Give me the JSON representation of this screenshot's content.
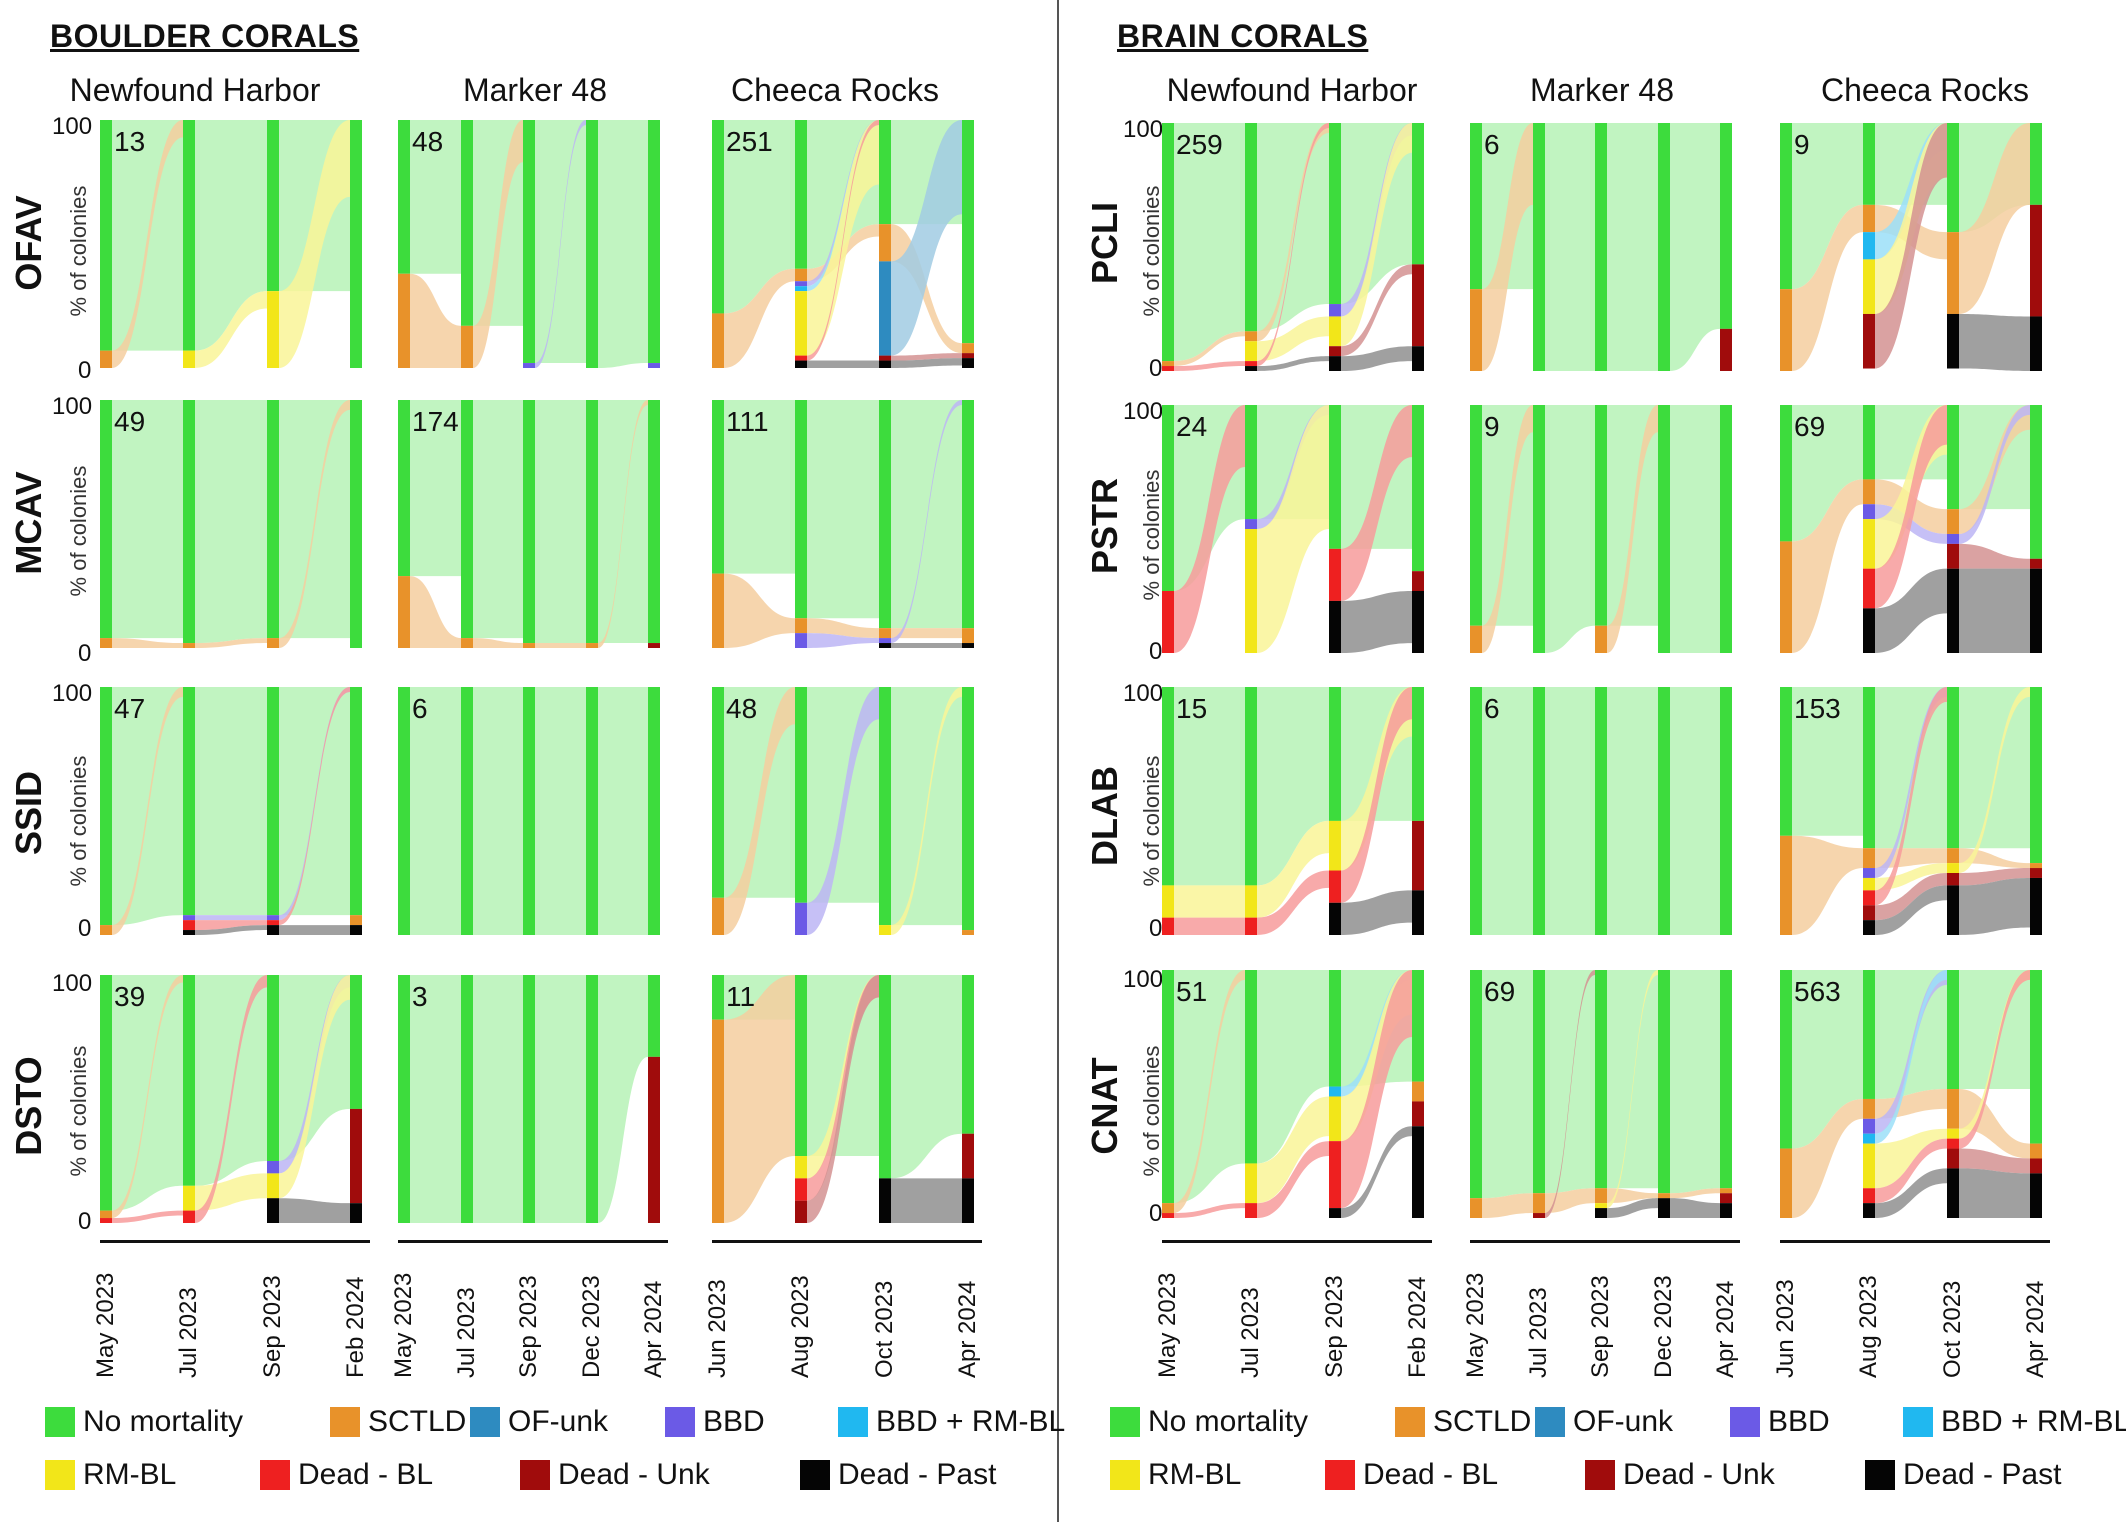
{
  "sections": [
    {
      "title": "BOULDER CORALS",
      "sites": [
        "Newfound Harbor",
        "Marker 48",
        "Cheeca Rocks"
      ],
      "species": [
        "OFAV",
        "MCAV",
        "SSID",
        "DSTO"
      ],
      "counts": [
        [
          "13",
          "48",
          "251"
        ],
        [
          "49",
          "174",
          "111"
        ],
        [
          "47",
          "6",
          "48"
        ],
        [
          "39",
          "3",
          "11"
        ]
      ],
      "dates": [
        [
          "May 2023",
          "Jul 2023",
          "Sep 2023",
          "Feb 2024"
        ],
        [
          "May 2023",
          "Jul 2023",
          "Sep 2023",
          "Dec 2023",
          "Apr 2024"
        ],
        [
          "Jun 2023",
          "Aug 2023",
          "Oct 2023",
          "Apr 2024"
        ]
      ]
    },
    {
      "title": "BRAIN CORALS",
      "sites": [
        "Newfound Harbor",
        "Marker 48",
        "Cheeca Rocks"
      ],
      "species": [
        "PCLI",
        "PSTR",
        "DLAB",
        "CNAT"
      ],
      "counts": [
        [
          "259",
          "6",
          "9"
        ],
        [
          "24",
          "9",
          "69"
        ],
        [
          "15",
          "6",
          "153"
        ],
        [
          "51",
          "69",
          "563"
        ]
      ],
      "dates": [
        [
          "May 2023",
          "Jul 2023",
          "Sep 2023",
          "Feb 2024"
        ],
        [
          "May 2023",
          "Jul 2023",
          "Sep 2023",
          "Dec 2023",
          "Apr 2024"
        ],
        [
          "Jun 2023",
          "Aug 2023",
          "Oct 2023",
          "Apr 2024"
        ]
      ]
    }
  ],
  "y_axis": {
    "title": "% of colonies",
    "tick_top": "100",
    "tick_bottom": "0"
  },
  "legend": [
    {
      "label": "No mortality",
      "color": "#3ddc3d"
    },
    {
      "label": "SCTLD",
      "color": "#e8922a"
    },
    {
      "label": "OF-unk",
      "color": "#2e8bc0"
    },
    {
      "label": "BBD",
      "color": "#6b5ae6"
    },
    {
      "label": "BBD + RM-BL",
      "color": "#20b8f0"
    },
    {
      "label": "RM-BL",
      "color": "#f2e619"
    },
    {
      "label": "Dead - BL",
      "color": "#ee2020"
    },
    {
      "label": "Dead - Unk",
      "color": "#a00c0c"
    },
    {
      "label": "Dead - Past",
      "color": "#050505"
    }
  ],
  "chart_data": {
    "type": "sankey",
    "description_units": "percent of colonies per category at each survey time",
    "ylim": [
      0,
      100
    ],
    "categories": [
      "No mortality",
      "SCTLD",
      "OF-unk",
      "BBD",
      "BBD + RM-BL",
      "RM-BL",
      "Dead - BL",
      "Dead - Unk",
      "Dead - Past"
    ],
    "panels": [
      {
        "group": "BOULDER CORALS",
        "species": "OFAV",
        "site": "Newfound Harbor",
        "n": 13,
        "stacks": [
          {
            "No mortality": 93,
            "SCTLD": 7
          },
          {
            "No mortality": 93,
            "RM-BL": 7
          },
          {
            "No mortality": 69,
            "RM-BL": 31
          },
          {
            "No mortality": 100
          }
        ]
      },
      {
        "group": "BOULDER CORALS",
        "species": "OFAV",
        "site": "Marker 48",
        "n": 48,
        "stacks": [
          {
            "No mortality": 62,
            "SCTLD": 38
          },
          {
            "No mortality": 83,
            "SCTLD": 17
          },
          {
            "No mortality": 98,
            "BBD": 2
          },
          {
            "No mortality": 100
          },
          {
            "No mortality": 98,
            "BBD": 2
          }
        ]
      },
      {
        "group": "BOULDER CORALS",
        "species": "OFAV",
        "site": "Cheeca Rocks",
        "n": 251,
        "stacks": [
          {
            "No mortality": 78,
            "SCTLD": 22
          },
          {
            "No mortality": 60,
            "BBD": 2,
            "BBD + RM-BL": 2,
            "SCTLD": 5,
            "RM-BL": 26,
            "Dead - BL": 2,
            "Dead - Past": 3
          },
          {
            "No mortality": 42,
            "SCTLD": 15,
            "OF-unk": 38,
            "Dead - Unk": 2,
            "Dead - Past": 3
          },
          {
            "No mortality": 90,
            "SCTLD": 4,
            "Dead - Unk": 2,
            "Dead - Past": 4
          }
        ]
      },
      {
        "group": "BOULDER CORALS",
        "species": "MCAV",
        "site": "Newfound Harbor",
        "n": 49,
        "stacks": [
          {
            "No mortality": 96,
            "SCTLD": 4
          },
          {
            "No mortality": 98,
            "SCTLD": 2
          },
          {
            "No mortality": 96,
            "SCTLD": 4
          },
          {
            "No mortality": 100
          }
        ]
      },
      {
        "group": "BOULDER CORALS",
        "species": "MCAV",
        "site": "Marker 48",
        "n": 174,
        "stacks": [
          {
            "No mortality": 71,
            "SCTLD": 29
          },
          {
            "No mortality": 96,
            "SCTLD": 4
          },
          {
            "No mortality": 98,
            "SCTLD": 2
          },
          {
            "No mortality": 98,
            "SCTLD": 2
          },
          {
            "No mortality": 98,
            "Dead - Unk": 2
          }
        ]
      },
      {
        "group": "BOULDER CORALS",
        "species": "MCAV",
        "site": "Cheeca Rocks",
        "n": 111,
        "stacks": [
          {
            "No mortality": 70,
            "SCTLD": 30
          },
          {
            "No mortality": 88,
            "SCTLD": 6,
            "BBD": 6
          },
          {
            "No mortality": 92,
            "SCTLD": 4,
            "BBD": 2,
            "Dead - Past": 2
          },
          {
            "No mortality": 92,
            "SCTLD": 6,
            "Dead - Past": 2
          }
        ]
      },
      {
        "group": "BOULDER CORALS",
        "species": "SSID",
        "site": "Newfound Harbor",
        "n": 47,
        "stacks": [
          {
            "No mortality": 96,
            "SCTLD": 4
          },
          {
            "No mortality": 92,
            "BBD": 2,
            "Dead - BL": 4,
            "Dead - Past": 2
          },
          {
            "No mortality": 92,
            "BBD": 2,
            "Dead - Past": 4,
            "Dead - BL": 2
          },
          {
            "No mortality": 92,
            "SCTLD": 4,
            "Dead - Past": 4
          }
        ]
      },
      {
        "group": "BOULDER CORALS",
        "species": "SSID",
        "site": "Marker 48",
        "n": 6,
        "stacks": [
          {
            "No mortality": 100
          },
          {
            "No mortality": 100
          },
          {
            "No mortality": 100
          },
          {
            "No mortality": 100
          },
          {
            "No mortality": 100
          }
        ]
      },
      {
        "group": "BOULDER CORALS",
        "species": "SSID",
        "site": "Cheeca Rocks",
        "n": 48,
        "stacks": [
          {
            "No mortality": 85,
            "SCTLD": 15
          },
          {
            "No mortality": 87,
            "BBD": 13
          },
          {
            "No mortality": 96,
            "RM-BL": 4
          },
          {
            "No mortality": 98,
            "SCTLD": 2
          }
        ]
      },
      {
        "group": "BOULDER CORALS",
        "species": "DSTO",
        "site": "Newfound Harbor",
        "n": 39,
        "stacks": [
          {
            "No mortality": 95,
            "SCTLD": 3,
            "Dead - BL": 2
          },
          {
            "No mortality": 85,
            "RM-BL": 10,
            "Dead - BL": 5
          },
          {
            "No mortality": 75,
            "BBD": 5,
            "RM-BL": 10,
            "Dead - Past": 10
          },
          {
            "No mortality": 54,
            "Dead - Unk": 38,
            "Dead - Past": 8
          }
        ]
      },
      {
        "group": "BOULDER CORALS",
        "species": "DSTO",
        "site": "Marker 48",
        "n": 3,
        "stacks": [
          {
            "No mortality": 100
          },
          {
            "No mortality": 100
          },
          {
            "No mortality": 100
          },
          {
            "No mortality": 100
          },
          {
            "No mortality": 33,
            "Dead - Unk": 67
          }
        ]
      },
      {
        "group": "BOULDER CORALS",
        "species": "DSTO",
        "site": "Cheeca Rocks",
        "n": 11,
        "stacks": [
          {
            "No mortality": 18,
            "SCTLD": 82
          },
          {
            "No mortality": 73,
            "RM-BL": 9,
            "Dead - BL": 9,
            "Dead - Unk": 9
          },
          {
            "No mortality": 82,
            "Dead - Past": 18
          },
          {
            "No mortality": 64,
            "Dead - Unk": 18,
            "Dead - Past": 18
          }
        ]
      },
      {
        "group": "BRAIN CORALS",
        "species": "PCLI",
        "site": "Newfound Harbor",
        "n": 259,
        "stacks": [
          {
            "No mortality": 96,
            "SCTLD": 2,
            "Dead - BL": 2
          },
          {
            "No mortality": 84,
            "SCTLD": 4,
            "RM-BL": 8,
            "Dead - BL": 2,
            "Dead - Past": 2
          },
          {
            "No mortality": 73,
            "BBD": 5,
            "RM-BL": 12,
            "Dead - Unk": 4,
            "Dead - Past": 6
          },
          {
            "No mortality": 57,
            "Dead - Unk": 33,
            "Dead - Past": 10
          }
        ]
      },
      {
        "group": "BRAIN CORALS",
        "species": "PCLI",
        "site": "Marker 48",
        "n": 6,
        "stacks": [
          {
            "No mortality": 67,
            "SCTLD": 33
          },
          {
            "No mortality": 100
          },
          {
            "No mortality": 100
          },
          {
            "No mortality": 100
          },
          {
            "No mortality": 83,
            "Dead - Unk": 17
          }
        ]
      },
      {
        "group": "BRAIN CORALS",
        "species": "PCLI",
        "site": "Cheeca Rocks",
        "n": 9,
        "stacks": [
          {
            "No mortality": 67,
            "SCTLD": 33
          },
          {
            "No mortality": 33,
            "SCTLD": 11,
            "BBD + RM-BL": 11,
            "RM-BL": 22,
            "Dead - Unk": 22
          },
          {
            "No mortality": 44,
            "SCTLD": 33,
            "Dead - Past": 22
          },
          {
            "No mortality": 33,
            "Dead - Unk": 45,
            "Dead - Past": 22
          }
        ]
      },
      {
        "group": "BRAIN CORALS",
        "species": "PSTR",
        "site": "Newfound Harbor",
        "n": 24,
        "stacks": [
          {
            "No mortality": 75,
            "Dead - BL": 25
          },
          {
            "No mortality": 46,
            "BBD": 4,
            "RM-BL": 50
          },
          {
            "No mortality": 58,
            "Dead - BL": 21,
            "Dead - Past": 21
          },
          {
            "No mortality": 67,
            "Dead - Unk": 8,
            "Dead - Past": 25
          }
        ]
      },
      {
        "group": "BRAIN CORALS",
        "species": "PSTR",
        "site": "Marker 48",
        "n": 9,
        "stacks": [
          {
            "No mortality": 89,
            "SCTLD": 11
          },
          {
            "No mortality": 100
          },
          {
            "No mortality": 89,
            "SCTLD": 11
          },
          {
            "No mortality": 100
          },
          {
            "No mortality": 100
          }
        ]
      },
      {
        "group": "BRAIN CORALS",
        "species": "PSTR",
        "site": "Cheeca Rocks",
        "n": 69,
        "stacks": [
          {
            "No mortality": 55,
            "SCTLD": 45
          },
          {
            "No mortality": 30,
            "SCTLD": 10,
            "BBD": 6,
            "RM-BL": 20,
            "Dead - BL": 16,
            "Dead - Past": 18
          },
          {
            "No mortality": 42,
            "SCTLD": 10,
            "BBD": 4,
            "Dead - Unk": 10,
            "Dead - Past": 34
          },
          {
            "No mortality": 62,
            "Dead - Unk": 4,
            "Dead - Past": 34
          }
        ]
      },
      {
        "group": "BRAIN CORALS",
        "species": "DLAB",
        "site": "Newfound Harbor",
        "n": 15,
        "stacks": [
          {
            "No mortality": 80,
            "RM-BL": 13,
            "Dead - BL": 7
          },
          {
            "No mortality": 80,
            "RM-BL": 13,
            "Dead - BL": 7
          },
          {
            "No mortality": 54,
            "RM-BL": 20,
            "Dead - BL": 13,
            "Dead - Past": 13
          },
          {
            "No mortality": 54,
            "Dead - Unk": 28,
            "Dead - Past": 18
          }
        ]
      },
      {
        "group": "BRAIN CORALS",
        "species": "DLAB",
        "site": "Marker 48",
        "n": 6,
        "stacks": [
          {
            "No mortality": 100
          },
          {
            "No mortality": 100
          },
          {
            "No mortality": 100
          },
          {
            "No mortality": 100
          },
          {
            "No mortality": 100
          }
        ]
      },
      {
        "group": "BRAIN CORALS",
        "species": "DLAB",
        "site": "Cheeca Rocks",
        "n": 153,
        "stacks": [
          {
            "No mortality": 60,
            "SCTLD": 40
          },
          {
            "No mortality": 65,
            "SCTLD": 8,
            "BBD": 4,
            "RM-BL": 5,
            "Dead - BL": 6,
            "Dead - Unk": 6,
            "Dead - Past": 6
          },
          {
            "No mortality": 65,
            "SCTLD": 6,
            "RM-BL": 4,
            "Dead - Unk": 5,
            "Dead - Past": 20
          },
          {
            "No mortality": 71,
            "SCTLD": 2,
            "Dead - Unk": 4,
            "Dead - Past": 23
          }
        ]
      },
      {
        "group": "BRAIN CORALS",
        "species": "CNAT",
        "site": "Newfound Harbor",
        "n": 51,
        "stacks": [
          {
            "No mortality": 94,
            "SCTLD": 4,
            "Dead - BL": 2
          },
          {
            "No mortality": 78,
            "RM-BL": 16,
            "Dead - BL": 6
          },
          {
            "No mortality": 47,
            "BBD + RM-BL": 4,
            "RM-BL": 18,
            "Dead - BL": 27,
            "Dead - Past": 4
          },
          {
            "No mortality": 45,
            "SCTLD": 8,
            "Dead - Unk": 10,
            "Dead - Past": 37
          }
        ]
      },
      {
        "group": "BRAIN CORALS",
        "species": "CNAT",
        "site": "Marker 48",
        "n": 69,
        "stacks": [
          {
            "No mortality": 92,
            "SCTLD": 8
          },
          {
            "No mortality": 90,
            "SCTLD": 8,
            "Dead - Unk": 2
          },
          {
            "No mortality": 88,
            "SCTLD": 6,
            "RM-BL": 2,
            "Dead - Past": 4
          },
          {
            "No mortality": 90,
            "SCTLD": 2,
            "Dead - Past": 8
          },
          {
            "No mortality": 88,
            "SCTLD": 2,
            "Dead - Unk": 4,
            "Dead - Past": 6
          }
        ]
      },
      {
        "group": "BRAIN CORALS",
        "species": "CNAT",
        "site": "Cheeca Rocks",
        "n": 563,
        "stacks": [
          {
            "No mortality": 72,
            "SCTLD": 28
          },
          {
            "No mortality": 52,
            "SCTLD": 8,
            "BBD": 6,
            "BBD + RM-BL": 4,
            "RM-BL": 18,
            "Dead - BL": 6,
            "Dead - Past": 6
          },
          {
            "No mortality": 48,
            "SCTLD": 16,
            "RM-BL": 4,
            "Dead - Unk": 8,
            "Dead - BL": 4,
            "Dead - Past": 20
          },
          {
            "No mortality": 70,
            "SCTLD": 6,
            "Dead - Unk": 6,
            "Dead - Past": 18
          }
        ]
      }
    ]
  }
}
